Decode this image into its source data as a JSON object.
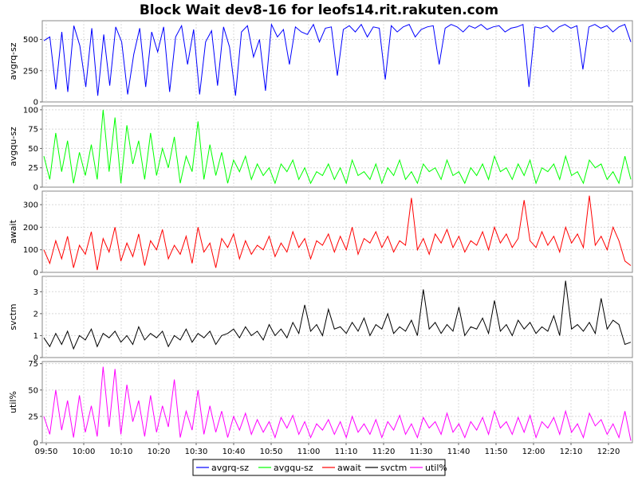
{
  "chart_data": {
    "type": "line",
    "title": "Block Wait dev8-16 for leofs14.rit.rakuten.com",
    "x_ticks": [
      "09:50",
      "10:00",
      "10:10",
      "10:20",
      "10:30",
      "10:40",
      "10:50",
      "11:00",
      "11:10",
      "11:20",
      "11:30",
      "11:40",
      "11:50",
      "12:00",
      "12:10",
      "12:20"
    ],
    "grid": true,
    "legend_position": "bottom",
    "panels": [
      {
        "name": "avgrq-sz",
        "ylabel": "avgrq-sz",
        "ylim": [
          0,
          650
        ],
        "yticks": [
          0,
          250,
          500
        ],
        "series": [
          {
            "name": "avgrq-sz",
            "color": "#0000ff",
            "values": [
              490,
              520,
              100,
              560,
              80,
              610,
              450,
              120,
              590,
              50,
              540,
              130,
              600,
              480,
              60,
              380,
              590,
              120,
              560,
              400,
              600,
              80,
              520,
              610,
              300,
              580,
              60,
              480,
              570,
              130,
              600,
              440,
              50,
              560,
              610,
              360,
              500,
              90,
              620,
              520,
              580,
              300,
              600,
              560,
              540,
              620,
              480,
              590,
              600,
              210,
              580,
              610,
              560,
              620,
              520,
              600,
              590,
              180,
              610,
              560,
              600,
              620,
              520,
              580,
              600,
              610,
              300,
              590,
              620,
              600,
              560,
              610,
              590,
              620,
              580,
              600,
              610,
              560,
              590,
              600,
              620,
              120,
              600,
              590,
              610,
              560,
              600,
              620,
              590,
              610,
              260,
              600,
              620,
              590,
              610,
              560,
              600,
              620,
              480
            ]
          }
        ]
      },
      {
        "name": "avgqu-sz",
        "ylabel": "avgqu-sz",
        "ylim": [
          0,
          105
        ],
        "yticks": [
          0,
          25,
          50,
          75,
          100
        ],
        "series": [
          {
            "name": "avgqu-sz",
            "color": "#00ff00",
            "values": [
              40,
              10,
              70,
              20,
              60,
              5,
              45,
              15,
              55,
              10,
              100,
              20,
              90,
              5,
              80,
              30,
              60,
              10,
              70,
              15,
              50,
              25,
              65,
              5,
              40,
              20,
              85,
              10,
              55,
              15,
              45,
              5,
              35,
              20,
              40,
              10,
              30,
              15,
              25,
              5,
              30,
              20,
              35,
              10,
              25,
              5,
              20,
              15,
              30,
              10,
              25,
              5,
              35,
              15,
              20,
              10,
              30,
              5,
              25,
              15,
              35,
              10,
              20,
              5,
              30,
              20,
              25,
              10,
              35,
              15,
              20,
              5,
              25,
              15,
              30,
              10,
              40,
              20,
              25,
              10,
              30,
              15,
              35,
              5,
              25,
              20,
              30,
              10,
              40,
              15,
              20,
              5,
              35,
              25,
              30,
              10,
              20,
              5,
              40,
              10
            ]
          }
        ]
      },
      {
        "name": "await",
        "ylabel": "await",
        "ylim": [
          0,
          360
        ],
        "yticks": [
          0,
          100,
          200,
          300
        ],
        "series": [
          {
            "name": "await",
            "color": "#ff0000",
            "values": [
              100,
              40,
              140,
              60,
              160,
              20,
              120,
              80,
              180,
              10,
              150,
              90,
              200,
              50,
              130,
              70,
              170,
              30,
              140,
              100,
              190,
              60,
              120,
              80,
              160,
              40,
              200,
              90,
              130,
              20,
              150,
              110,
              170,
              60,
              140,
              80,
              120,
              100,
              160,
              70,
              130,
              90,
              180,
              110,
              150,
              60,
              140,
              120,
              170,
              90,
              160,
              100,
              200,
              80,
              150,
              130,
              180,
              110,
              160,
              90,
              140,
              120,
              330,
              100,
              150,
              80,
              170,
              130,
              190,
              110,
              160,
              90,
              140,
              120,
              180,
              100,
              200,
              130,
              170,
              110,
              150,
              320,
              140,
              110,
              180,
              120,
              160,
              90,
              200,
              130,
              170,
              110,
              340,
              120,
              160,
              100,
              200,
              140,
              50,
              30
            ]
          }
        ]
      },
      {
        "name": "svctm",
        "ylabel": "svctm",
        "ylim": [
          0,
          3.7
        ],
        "yticks": [
          0,
          1,
          2,
          3
        ],
        "series": [
          {
            "name": "svctm",
            "color": "#000000",
            "values": [
              0.9,
              0.5,
              1.1,
              0.6,
              1.2,
              0.4,
              1.0,
              0.8,
              1.3,
              0.5,
              1.1,
              0.9,
              1.2,
              0.7,
              1.0,
              0.6,
              1.4,
              0.8,
              1.1,
              0.9,
              1.2,
              0.5,
              1.0,
              0.8,
              1.3,
              0.7,
              1.1,
              0.9,
              1.2,
              0.6,
              1.0,
              1.1,
              1.3,
              0.9,
              1.4,
              1.0,
              1.2,
              0.8,
              1.5,
              1.0,
              1.3,
              0.9,
              1.6,
              1.1,
              2.4,
              1.2,
              1.5,
              1.0,
              2.2,
              1.3,
              1.4,
              1.1,
              1.6,
              1.2,
              1.8,
              1.0,
              1.5,
              1.3,
              2.0,
              1.1,
              1.4,
              1.2,
              1.7,
              1.0,
              3.1,
              1.3,
              1.6,
              1.1,
              1.5,
              1.2,
              2.3,
              1.0,
              1.4,
              1.3,
              1.8,
              1.1,
              2.6,
              1.2,
              1.5,
              1.0,
              1.7,
              1.3,
              1.6,
              1.1,
              1.4,
              1.2,
              1.9,
              1.0,
              3.5,
              1.3,
              1.5,
              1.2,
              1.6,
              1.1,
              2.7,
              1.3,
              1.7,
              1.5,
              0.6,
              0.7
            ]
          }
        ]
      },
      {
        "name": "util%",
        "ylabel": "util%",
        "ylim": [
          0,
          77
        ],
        "yticks": [
          0,
          25,
          50,
          75
        ],
        "series": [
          {
            "name": "util%",
            "color": "#ff00ff",
            "values": [
              25,
              8,
              50,
              12,
              40,
              5,
              45,
              10,
              35,
              6,
              72,
              15,
              70,
              8,
              55,
              20,
              40,
              6,
              45,
              10,
              35,
              15,
              60,
              5,
              30,
              12,
              50,
              8,
              35,
              10,
              30,
              5,
              25,
              12,
              28,
              8,
              22,
              10,
              20,
              5,
              24,
              14,
              26,
              8,
              20,
              5,
              18,
              12,
              22,
              8,
              20,
              5,
              25,
              10,
              18,
              8,
              22,
              5,
              20,
              12,
              26,
              8,
              18,
              5,
              24,
              14,
              20,
              8,
              28,
              10,
              18,
              5,
              20,
              12,
              24,
              8,
              30,
              14,
              20,
              8,
              24,
              10,
              26,
              5,
              20,
              14,
              24,
              8,
              30,
              10,
              18,
              5,
              28,
              16,
              22,
              8,
              18,
              5,
              30,
              2
            ]
          }
        ]
      }
    ]
  }
}
